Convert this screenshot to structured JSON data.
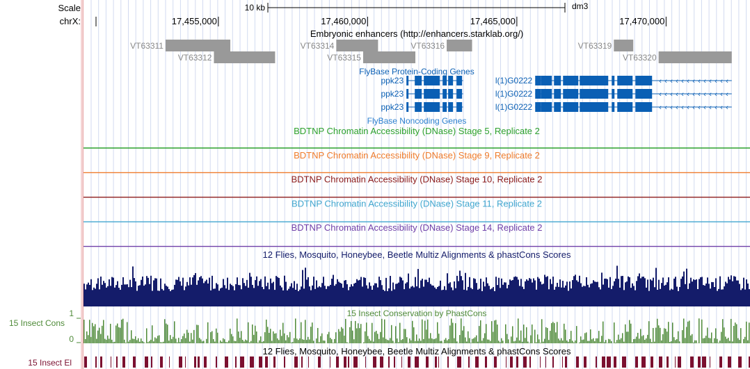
{
  "colors": {
    "left_margin": "#f5d5d5",
    "guide": "#d2daf0",
    "enhancer": "#999999",
    "gene": "#0a5fb4",
    "dnase_stage5": "#2ca02c",
    "dnase_stage9": "#ef7c2c",
    "dnase_stage10": "#8b1a1a",
    "dnase_stage11": "#41a6cf",
    "dnase_stage14": "#6f3fa8",
    "multiz": "#141c6a",
    "phastcons": "#4e8a38",
    "elements": "#7b1030"
  },
  "ruler": {
    "scale_label": "Scale",
    "chrom_label": "chrX:",
    "scale_bar_label": "10 kb",
    "assembly": "dm3",
    "positions": [
      "17,455,000",
      "17,460,000",
      "17,465,000",
      "17,470,000"
    ]
  },
  "enhancers": {
    "title": "Embryonic enhancers (http://enhancers.starklab.org/)",
    "items": [
      {
        "label": "VT63311",
        "start_kb": 17453.23,
        "end_kb": 17455.4
      },
      {
        "label": "VT63312",
        "start_kb": 17454.85,
        "end_kb": 17456.9
      },
      {
        "label": "VT63314",
        "start_kb": 17458.95,
        "end_kb": 17460.35
      },
      {
        "label": "VT63315",
        "start_kb": 17459.85,
        "end_kb": 17461.6
      },
      {
        "label": "VT63316",
        "start_kb": 17462.65,
        "end_kb": 17463.5
      },
      {
        "label": "VT63319",
        "start_kb": 17468.25,
        "end_kb": 17468.9
      },
      {
        "label": "VT63320",
        "start_kb": 17469.75,
        "end_kb": 17472.2
      }
    ]
  },
  "genes": {
    "coding_title": "FlyBase Protein-Coding Genes",
    "noncoding_title": "FlyBase Noncoding Genes",
    "ppk23_label": "ppk23",
    "lg0222_label": "l(1)G0222",
    "ppk23_transcripts": [
      {
        "label": "ppk23",
        "start_kb": 17461.3,
        "end_kb": 17463.2
      },
      {
        "label": "ppk23",
        "start_kb": 17461.3,
        "end_kb": 17463.2
      },
      {
        "label": "ppk23",
        "start_kb": 17461.3,
        "end_kb": 17463.2
      }
    ],
    "lg0222_transcripts": [
      {
        "label": "l(1)G0222",
        "start_kb": 17466.5,
        "end_kb": 17472.2
      },
      {
        "label": "l(1)G0222",
        "start_kb": 17466.5,
        "end_kb": 17472.2
      },
      {
        "label": "l(1)G0222",
        "start_kb": 17466.5,
        "end_kb": 17472.2
      }
    ]
  },
  "dnase_tracks": [
    {
      "title": "BDTNP Chromatin Accessibility (DNase) Stage 5, Replicate 2",
      "color_key": "dnase_stage5"
    },
    {
      "title": "BDTNP Chromatin Accessibility (DNase) Stage 9, Replicate 2",
      "color_key": "dnase_stage9"
    },
    {
      "title": "BDTNP Chromatin Accessibility (DNase) Stage 10, Replicate 2",
      "color_key": "dnase_stage10"
    },
    {
      "title": "BDTNP Chromatin Accessibility (DNase) Stage 11, Replicate 2",
      "color_key": "dnase_stage11"
    },
    {
      "title": "BDTNP Chromatin Accessibility (DNase) Stage 14, Replicate 2",
      "color_key": "dnase_stage14"
    }
  ],
  "multiz": {
    "title": "12 Flies, Mosquito, Honeybee, Beetle Multiz Alignments & phastCons Scores"
  },
  "conservation": {
    "title": "15 Insect Conservation by PhastCons",
    "side_label": "15 Insect Cons",
    "axis_max": "1",
    "axis_min": "0"
  },
  "elements_track": {
    "title": "12 Flies, Mosquito, Honeybee, Beetle Multiz Alignments & phastCons Scores",
    "side_label": "15 Insect El"
  }
}
